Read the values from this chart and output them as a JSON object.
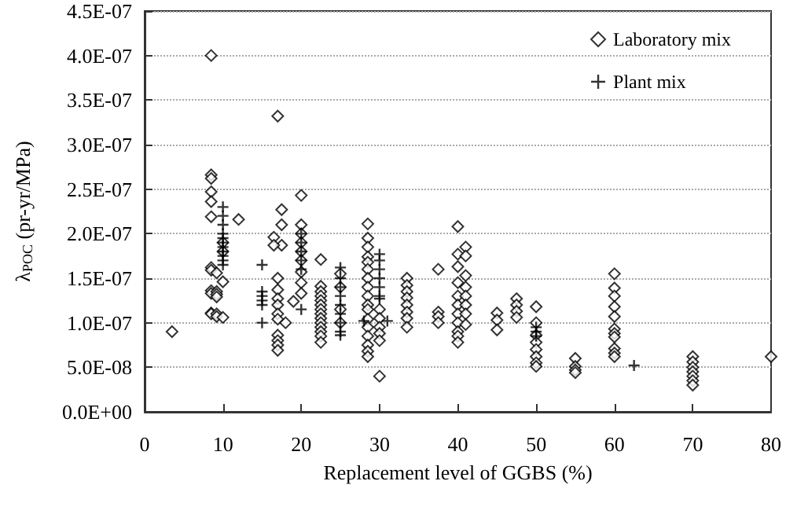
{
  "chart_data": {
    "type": "scatter",
    "xlabel": "Replacement level of GGBS (%)",
    "ylabel": "λ$_{POC}$ (pr-yr/MPa)",
    "xlim": [
      0,
      80
    ],
    "xticks": [
      0,
      10,
      20,
      30,
      40,
      50,
      60,
      70,
      80
    ],
    "ylim": [
      0,
      4.5e-07
    ],
    "yticks": [
      {
        "value": 0,
        "label": "0.0E+00"
      },
      {
        "value": 5e-08,
        "label": "5.0E-08"
      },
      {
        "value": 1e-07,
        "label": "1.0E-07"
      },
      {
        "value": 1.5e-07,
        "label": "1.5E-07"
      },
      {
        "value": 2e-07,
        "label": "2.0E-07"
      },
      {
        "value": 2.5e-07,
        "label": "2.5E-07"
      },
      {
        "value": 3e-07,
        "label": "3.0E-07"
      },
      {
        "value": 3.5e-07,
        "label": "3.5E-07"
      },
      {
        "value": 4e-07,
        "label": "4.0E-07"
      },
      {
        "value": 4.5e-07,
        "label": "4.5E-07"
      }
    ],
    "grid": "y",
    "legend": "top right",
    "series": [
      {
        "name": "Laboratory mix",
        "color": "#000000",
        "marker": "diamond",
        "x": [
          3.5,
          8.5,
          8.5,
          8.5,
          8.5,
          8.5,
          8.5,
          8.5,
          8.5,
          8.5,
          8.5,
          8.5,
          8.5,
          9.2,
          9.2,
          9.2,
          9.2,
          9.2,
          9.2,
          10,
          10,
          10,
          10,
          12,
          17,
          17,
          17,
          17,
          17,
          17,
          17,
          17,
          17,
          17,
          17,
          17.5,
          17.5,
          17.5,
          16.5,
          16.5,
          18,
          19,
          20,
          20,
          20,
          20,
          20,
          20,
          20,
          20,
          20,
          22.5,
          22.5,
          22.5,
          22.5,
          22.5,
          22.5,
          22.5,
          22.5,
          22.5,
          22.5,
          22.5,
          22.5,
          22.5,
          22.5,
          25,
          25,
          25,
          25,
          28.5,
          28.5,
          28.5,
          28.5,
          28.5,
          28.5,
          28.5,
          28.5,
          28.5,
          28.5,
          28.5,
          28.5,
          28.5,
          28.5,
          28.5,
          28.5,
          28.5,
          30,
          30,
          30,
          30,
          30,
          30,
          33.5,
          33.5,
          33.5,
          33.5,
          33.5,
          33.5,
          33.5,
          33.5,
          37.5,
          37.5,
          37.5,
          37.5,
          40,
          40,
          40,
          40,
          40,
          40,
          40,
          40,
          40,
          40,
          40,
          41,
          41,
          41,
          41,
          41,
          41,
          41,
          41,
          45,
          45,
          45,
          47.5,
          47.5,
          47.5,
          47.5,
          50,
          50,
          50,
          50,
          50,
          50,
          50,
          50,
          55,
          55,
          55,
          55,
          60,
          60,
          60,
          60,
          60,
          60,
          60,
          60,
          60,
          60,
          60,
          70,
          70,
          70,
          70,
          70,
          70,
          70,
          80
        ],
        "values": [
          9e-08,
          4e-07,
          2.66e-07,
          2.62e-07,
          2.47e-07,
          2.36e-07,
          2.19e-07,
          1.62e-07,
          1.59e-07,
          1.36e-07,
          1.33e-07,
          1.11e-07,
          1.1e-07,
          1.56e-07,
          1.35e-07,
          1.32e-07,
          1.29e-07,
          1.1e-07,
          1.07e-07,
          1.46e-07,
          1.06e-07,
          1.9e-07,
          1.8e-07,
          2.16e-07,
          3.32e-07,
          1.5e-07,
          1.37e-07,
          1.27e-07,
          1.2e-07,
          1.1e-07,
          1.04e-07,
          8.6e-08,
          8e-08,
          7.5e-08,
          6.9e-08,
          2.27e-07,
          2.1e-07,
          1.87e-07,
          1.96e-07,
          1.87e-07,
          1e-07,
          1.24e-07,
          2.43e-07,
          2.1e-07,
          2e-07,
          1.9e-07,
          1.8e-07,
          1.7e-07,
          1.57e-07,
          1.45e-07,
          1.33e-07,
          1.71e-07,
          1.41e-07,
          1.35e-07,
          1.3e-07,
          1.25e-07,
          1.2e-07,
          1.15e-07,
          1.1e-07,
          1.05e-07,
          1e-07,
          9.5e-08,
          9e-08,
          8.5e-08,
          7.8e-08,
          1.55e-07,
          1.4e-07,
          1.15e-07,
          1e-07,
          2.11e-07,
          1.95e-07,
          1.85e-07,
          1.74e-07,
          1.68e-07,
          1.6e-07,
          1.5e-07,
          1.4e-07,
          1.3e-07,
          1.2e-07,
          1.15e-07,
          1.04e-07,
          9.5e-08,
          8.5e-08,
          7.5e-08,
          6.8e-08,
          6.2e-08,
          1.15e-07,
          1.05e-07,
          9.5e-08,
          8.8e-08,
          8e-08,
          4e-08,
          1.5e-07,
          1.42e-07,
          1.35e-07,
          1.28e-07,
          1.2e-07,
          1.12e-07,
          1.05e-07,
          9.5e-08,
          1.6e-07,
          1.12e-07,
          1.07e-07,
          1e-07,
          2.08e-07,
          1.77e-07,
          1.63e-07,
          1.45e-07,
          1.3e-07,
          1.2e-07,
          1.1e-07,
          1e-07,
          9e-08,
          8.5e-08,
          7.8e-08,
          1.85e-07,
          1.75e-07,
          1.53e-07,
          1.4e-07,
          1.3e-07,
          1.2e-07,
          1.1e-07,
          9.8e-08,
          1.11e-07,
          1.03e-07,
          9.2e-08,
          1.27e-07,
          1.2e-07,
          1.13e-07,
          1.06e-07,
          1.18e-07,
          1e-07,
          8.6e-08,
          7.8e-08,
          7e-08,
          6.2e-08,
          5.5e-08,
          5.1e-08,
          6e-08,
          5.1e-08,
          4.7e-08,
          4.4e-08,
          1.55e-07,
          1.39e-07,
          1.3e-07,
          1.18e-07,
          1.07e-07,
          9.3e-08,
          8.8e-08,
          8.4e-08,
          7.1e-08,
          6.6e-08,
          6.2e-08,
          6.2e-08,
          5.6e-08,
          5e-08,
          4.5e-08,
          4e-08,
          3.5e-08,
          3e-08,
          6.2e-08
        ]
      },
      {
        "name": "Plant mix",
        "color": "#000000",
        "marker": "cross",
        "x": [
          10,
          10,
          10,
          10,
          10,
          10,
          10,
          10,
          10,
          10,
          10,
          15,
          15,
          15,
          15,
          15,
          15,
          20,
          20,
          20,
          20,
          20,
          20,
          25,
          25,
          25,
          25,
          25,
          25,
          25,
          25,
          25,
          28,
          30,
          30,
          30,
          30,
          30,
          30,
          30,
          31,
          50,
          50,
          50,
          62.5
        ],
        "values": [
          2.3e-07,
          2.2e-07,
          2.1e-07,
          2e-07,
          1.95e-07,
          1.9e-07,
          1.85e-07,
          1.8e-07,
          1.75e-07,
          1.7e-07,
          1.65e-07,
          1.65e-07,
          1.35e-07,
          1.3e-07,
          1.25e-07,
          1.2e-07,
          1e-07,
          2e-07,
          1.9e-07,
          1.8e-07,
          1.7e-07,
          1.6e-07,
          1.15e-07,
          1.62e-07,
          1.5e-07,
          1.4e-07,
          1.3e-07,
          1.2e-07,
          1.1e-07,
          1e-07,
          9e-08,
          8.6e-08,
          1.02e-07,
          1.77e-07,
          1.7e-07,
          1.6e-07,
          1.5e-07,
          1.4e-07,
          1.3e-07,
          1.27e-07,
          1.02e-07,
          9.5e-08,
          9e-08,
          8.5e-08,
          5.2e-08
        ]
      }
    ]
  }
}
